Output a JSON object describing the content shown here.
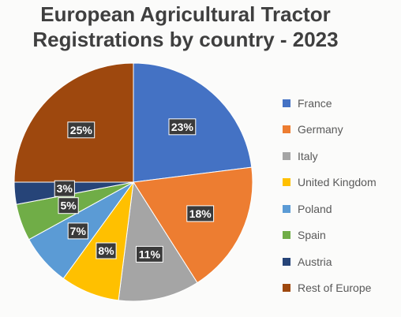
{
  "chart_data": {
    "type": "pie",
    "title_lines": [
      "European Agricultural Tractor",
      "Registrations by country - 2023"
    ],
    "categories": [
      "France",
      "Germany",
      "Italy",
      "United Kingdom",
      "Poland",
      "Spain",
      "Austria",
      "Rest of Europe"
    ],
    "values": [
      23,
      18,
      11,
      8,
      7,
      5,
      3,
      25
    ],
    "unit": "%",
    "labels": [
      "23%",
      "18%",
      "11%",
      "8%",
      "7%",
      "5%",
      "3%",
      "25%"
    ],
    "colors": [
      "#4472c4",
      "#ed7d31",
      "#a5a5a5",
      "#ffc000",
      "#5b9bd5",
      "#70ad47",
      "#264478",
      "#9e480e"
    ],
    "start_angle_deg": 0,
    "direction": "clockwise",
    "legend_position": "right",
    "data_label_style": "dark boxes with white bold text"
  }
}
